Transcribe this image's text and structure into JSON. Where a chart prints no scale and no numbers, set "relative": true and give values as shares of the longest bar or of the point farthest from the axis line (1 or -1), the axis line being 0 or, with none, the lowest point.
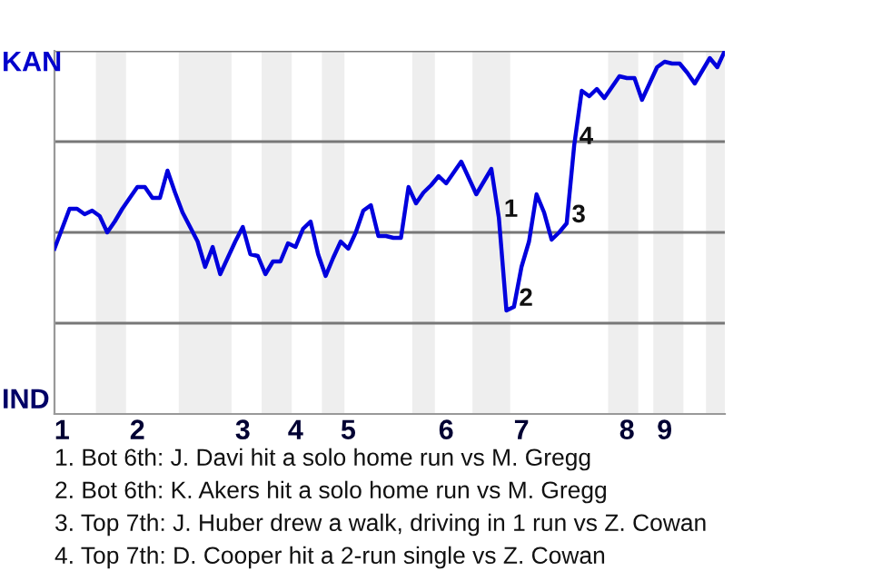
{
  "chart_data": {
    "type": "line",
    "relative": true,
    "categories": [
      null,
      "1",
      null,
      null,
      null,
      null,
      null,
      null,
      null,
      null,
      null,
      "2",
      null,
      null,
      null,
      null,
      null,
      null,
      null,
      null,
      null,
      null,
      null,
      null,
      null,
      "3",
      null,
      null,
      null,
      null,
      null,
      null,
      "4",
      null,
      null,
      null,
      null,
      null,
      null,
      "5",
      null,
      null,
      null,
      null,
      null,
      null,
      null,
      null,
      null,
      null,
      null,
      null,
      "6",
      null,
      null,
      null,
      null,
      null,
      null,
      null,
      null,
      null,
      "7",
      null,
      null,
      null,
      null,
      null,
      null,
      null,
      null,
      null,
      null,
      null,
      null,
      null,
      "8",
      null,
      null,
      null,
      null,
      "9",
      null,
      null,
      null,
      null,
      null,
      null,
      null,
      null
    ],
    "series": [
      {
        "color": "#0000dd",
        "values": [
          0.455,
          0.51,
          0.565,
          0.565,
          0.55,
          0.56,
          0.545,
          0.5,
          0.53,
          0.565,
          0.595,
          0.625,
          0.625,
          0.595,
          0.595,
          0.67,
          0.61,
          0.555,
          0.515,
          0.475,
          0.405,
          0.46,
          0.385,
          0.43,
          0.475,
          0.515,
          0.44,
          0.435,
          0.385,
          0.42,
          0.42,
          0.47,
          0.46,
          0.51,
          0.53,
          0.44,
          0.38,
          0.43,
          0.475,
          0.455,
          0.5,
          0.56,
          0.575,
          0.49,
          0.49,
          0.485,
          0.485,
          0.625,
          0.58,
          0.61,
          0.63,
          0.655,
          0.635,
          0.665,
          0.695,
          0.65,
          0.605,
          0.64,
          0.675,
          0.54,
          0.285,
          0.295,
          0.405,
          0.475,
          0.605,
          0.555,
          0.48,
          0.5,
          0.525,
          0.74,
          0.89,
          0.875,
          0.895,
          0.87,
          0.9,
          0.93,
          0.925,
          0.925,
          0.865,
          0.91,
          0.955,
          0.97,
          0.965,
          0.965,
          0.94,
          0.91,
          0.945,
          0.98,
          0.955,
          1
        ]
      }
    ],
    "marker": "none",
    "line_style": "solid",
    "ref_lines": [
      {
        "axis": "y",
        "value": 0.25,
        "color": "#777777"
      },
      {
        "axis": "y",
        "value": 0.5,
        "color": "#777777"
      },
      {
        "axis": "y",
        "value": 0.75,
        "color": "#777777"
      },
      {
        "axis": "y",
        "value": 1,
        "color": "#777777"
      }
    ],
    "annotations": [
      "KAN",
      "IND",
      "1. Bot 6th: J. Davi hit a solo home run vs M. Gregg",
      "2. Bot 6th: K. Akers hit a solo home run vs M. Gregg",
      "3. Top 7th: J. Huber drew a walk, driving in 1 run vs Z. Cowan",
      "4. Top 7th: D. Cooper hit a 2-run single vs Z. Cowan",
      "1",
      "2",
      "3",
      "4"
    ]
  }
}
